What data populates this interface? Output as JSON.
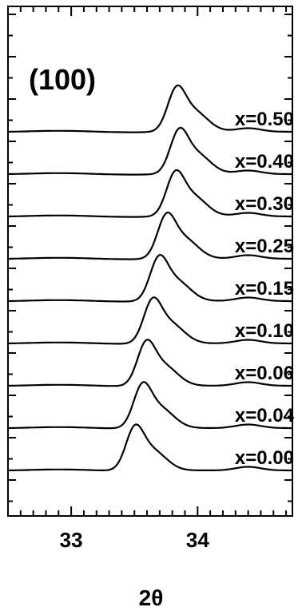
{
  "chart_data": {
    "type": "line",
    "title": "",
    "annotation": "(100)",
    "xlabel": "2θ",
    "ylabel": "",
    "xlim": [
      32.5,
      34.75
    ],
    "x_ticks": [
      "33",
      "34"
    ],
    "grid": false,
    "series": [
      {
        "name": "x=0.00",
        "offset": 0,
        "peak_2theta": 33.5,
        "peak_height": 4.6
      },
      {
        "name": "x=0.04",
        "offset": 1,
        "peak_2theta": 33.56,
        "peak_height": 4.6
      },
      {
        "name": "x=0.06",
        "offset": 2,
        "peak_2theta": 33.59,
        "peak_height": 4.6
      },
      {
        "name": "x=0.10",
        "offset": 3,
        "peak_2theta": 33.64,
        "peak_height": 4.6
      },
      {
        "name": "x=0.15",
        "offset": 4,
        "peak_2theta": 33.69,
        "peak_height": 4.6
      },
      {
        "name": "x=0.25",
        "offset": 5,
        "peak_2theta": 33.75,
        "peak_height": 4.6
      },
      {
        "name": "x=0.30",
        "offset": 6,
        "peak_2theta": 33.82,
        "peak_height": 4.6
      },
      {
        "name": "x=0.40",
        "offset": 7,
        "peak_2theta": 33.85,
        "peak_height": 4.6
      },
      {
        "name": "x=0.50",
        "offset": 8,
        "peak_2theta": 33.83,
        "peak_height": 4.6
      }
    ]
  }
}
